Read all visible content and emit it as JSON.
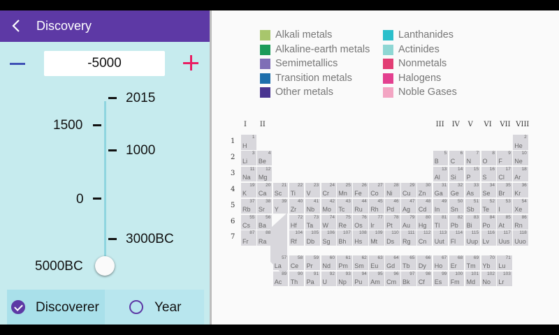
{
  "appbar": {
    "title": "Discovery"
  },
  "year_input": {
    "value": "-5000"
  },
  "timeline": {
    "right_labels": [
      "2015",
      "1000",
      "3000BC"
    ],
    "left_labels": [
      "1500",
      "0",
      "5000BC"
    ]
  },
  "mode": {
    "discoverer_label": "Discoverer",
    "year_label": "Year",
    "selected": "discoverer"
  },
  "legend": [
    {
      "label": "Alkali metals",
      "color": "#a8c66c"
    },
    {
      "label": "Alkaline-earth metals",
      "color": "#1b9b5a"
    },
    {
      "label": "Semimetallics",
      "color": "#7f6eb6"
    },
    {
      "label": "Transition metals",
      "color": "#1e6fab"
    },
    {
      "label": "Other metals",
      "color": "#4a3591"
    },
    {
      "label": "Lanthanides",
      "color": "#2bbfcb"
    },
    {
      "label": "Actinides",
      "color": "#8fd7d4"
    },
    {
      "label": "Nonmetals",
      "color": "#e23e74"
    },
    {
      "label": "Halogens",
      "color": "#e3408f"
    },
    {
      "label": "Noble Gases",
      "color": "#f3a5c3"
    }
  ],
  "group_labels": [
    "I",
    "II",
    "III",
    "IV",
    "V",
    "VI",
    "VII",
    "VIII"
  ],
  "period_labels": [
    "1",
    "2",
    "3",
    "4",
    "5",
    "6",
    "7"
  ],
  "elements": [
    [
      "1",
      "H"
    ],
    [
      "2",
      "He"
    ],
    [
      "3",
      "Li"
    ],
    [
      "4",
      "Be"
    ],
    [
      "5",
      "B"
    ],
    [
      "6",
      "C"
    ],
    [
      "7",
      "N"
    ],
    [
      "8",
      "O"
    ],
    [
      "9",
      "F"
    ],
    [
      "10",
      "Ne"
    ],
    [
      "11",
      "Na"
    ],
    [
      "12",
      "Mg"
    ],
    [
      "13",
      "Al"
    ],
    [
      "14",
      "Si"
    ],
    [
      "15",
      "P"
    ],
    [
      "16",
      "S"
    ],
    [
      "17",
      "Cl"
    ],
    [
      "18",
      "Ar"
    ],
    [
      "19",
      "K"
    ],
    [
      "20",
      "Ca"
    ],
    [
      "21",
      "Sc"
    ],
    [
      "22",
      "Ti"
    ],
    [
      "23",
      "V"
    ],
    [
      "24",
      "Cr"
    ],
    [
      "25",
      "Mn"
    ],
    [
      "26",
      "Fe"
    ],
    [
      "27",
      "Co"
    ],
    [
      "28",
      "Ni"
    ],
    [
      "29",
      "Cu"
    ],
    [
      "30",
      "Zn"
    ],
    [
      "31",
      "Ga"
    ],
    [
      "32",
      "Ge"
    ],
    [
      "33",
      "As"
    ],
    [
      "34",
      "Se"
    ],
    [
      "35",
      "Br"
    ],
    [
      "36",
      "Kr"
    ],
    [
      "37",
      "Rb"
    ],
    [
      "38",
      "Sr"
    ],
    [
      "39",
      "Y"
    ],
    [
      "40",
      "Zr"
    ],
    [
      "41",
      "Nb"
    ],
    [
      "42",
      "Mo"
    ],
    [
      "43",
      "Tc"
    ],
    [
      "44",
      "Ru"
    ],
    [
      "45",
      "Rh"
    ],
    [
      "46",
      "Pd"
    ],
    [
      "47",
      "Ag"
    ],
    [
      "48",
      "Cd"
    ],
    [
      "49",
      "In"
    ],
    [
      "50",
      "Sn"
    ],
    [
      "51",
      "Sb"
    ],
    [
      "52",
      "Te"
    ],
    [
      "53",
      "I"
    ],
    [
      "54",
      "Xe"
    ],
    [
      "55",
      "Cs"
    ],
    [
      "56",
      "Ba"
    ],
    [
      "72",
      "Hf"
    ],
    [
      "73",
      "Ta"
    ],
    [
      "74",
      "W"
    ],
    [
      "75",
      "Re"
    ],
    [
      "76",
      "Os"
    ],
    [
      "77",
      "Ir"
    ],
    [
      "78",
      "Pt"
    ],
    [
      "79",
      "Au"
    ],
    [
      "80",
      "Hg"
    ],
    [
      "81",
      "Tl"
    ],
    [
      "82",
      "Pb"
    ],
    [
      "83",
      "Bi"
    ],
    [
      "84",
      "Po"
    ],
    [
      "85",
      "At"
    ],
    [
      "86",
      "Rn"
    ],
    [
      "87",
      "Fr"
    ],
    [
      "88",
      "Ra"
    ],
    [
      "104",
      "Rf"
    ],
    [
      "105",
      "Db"
    ],
    [
      "106",
      "Sg"
    ],
    [
      "107",
      "Bh"
    ],
    [
      "108",
      "Hs"
    ],
    [
      "109",
      "Mt"
    ],
    [
      "110",
      "Ds"
    ],
    [
      "111",
      "Rg"
    ],
    [
      "112",
      "Cn"
    ],
    [
      "113",
      "Uut"
    ],
    [
      "114",
      "Fl"
    ],
    [
      "115",
      "Uup"
    ],
    [
      "116",
      "Lv"
    ],
    [
      "117",
      "Uus"
    ],
    [
      "118",
      "Uuo"
    ],
    [
      "57",
      "La"
    ],
    [
      "58",
      "Ce"
    ],
    [
      "59",
      "Pr"
    ],
    [
      "60",
      "Nd"
    ],
    [
      "61",
      "Pm"
    ],
    [
      "62",
      "Sm"
    ],
    [
      "63",
      "Eu"
    ],
    [
      "64",
      "Gd"
    ],
    [
      "65",
      "Tb"
    ],
    [
      "66",
      "Dy"
    ],
    [
      "67",
      "Ho"
    ],
    [
      "68",
      "Er"
    ],
    [
      "69",
      "Tm"
    ],
    [
      "70",
      "Yb"
    ],
    [
      "71",
      "Lu"
    ],
    [
      "89",
      "Ac"
    ],
    [
      "90",
      "Th"
    ],
    [
      "91",
      "Pa"
    ],
    [
      "92",
      "U"
    ],
    [
      "93",
      "Np"
    ],
    [
      "94",
      "Pu"
    ],
    [
      "95",
      "Am"
    ],
    [
      "96",
      "Cm"
    ],
    [
      "97",
      "Bk"
    ],
    [
      "98",
      "Cf"
    ],
    [
      "99",
      "Es"
    ],
    [
      "100",
      "Fm"
    ],
    [
      "101",
      "Md"
    ],
    [
      "102",
      "No"
    ],
    [
      "103",
      "Lr"
    ]
  ]
}
